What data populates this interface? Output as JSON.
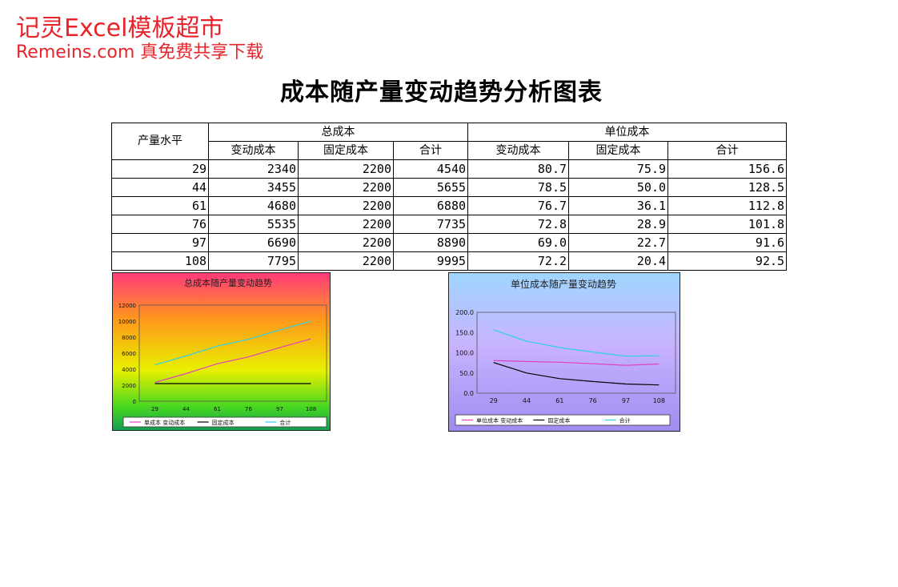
{
  "watermark": {
    "line1": "记灵Excel模板超市",
    "line2": "Remeins.com 真免费共享下载"
  },
  "title": "成本随产量变动趋势分析图表",
  "table": {
    "col_output": "产量水平",
    "group_total": "总成本",
    "group_unit": "单位成本",
    "sub_headers": [
      "变动成本",
      "固定成本",
      "合计",
      "变动成本",
      "固定成本",
      "合计"
    ],
    "rows": [
      [
        "29",
        "2340",
        "2200",
        "4540",
        "80.7",
        "75.9",
        "156.6"
      ],
      [
        "44",
        "3455",
        "2200",
        "5655",
        "78.5",
        "50.0",
        "128.5"
      ],
      [
        "61",
        "4680",
        "2200",
        "6880",
        "76.7",
        "36.1",
        "112.8"
      ],
      [
        "76",
        "5535",
        "2200",
        "7735",
        "72.8",
        "28.9",
        "101.8"
      ],
      [
        "97",
        "6690",
        "2200",
        "8890",
        "69.0",
        "22.7",
        "91.6"
      ],
      [
        "108",
        "7795",
        "2200",
        "9995",
        "72.2",
        "20.4",
        "92.5"
      ]
    ]
  },
  "chart_data": [
    {
      "type": "line",
      "title": "总成本随产量变动趋势",
      "categories": [
        "29",
        "44",
        "61",
        "76",
        "97",
        "108"
      ],
      "ylim": [
        0,
        12000
      ],
      "yticks": [
        "0",
        "2000",
        "4000",
        "6000",
        "8000",
        "10000",
        "12000"
      ],
      "series": [
        {
          "name": "单成本 变动成本",
          "color": "#e040c0",
          "values": [
            2340,
            3455,
            4680,
            5535,
            6690,
            7795
          ]
        },
        {
          "name": "固定成本",
          "color": "#000000",
          "values": [
            2200,
            2200,
            2200,
            2200,
            2200,
            2200
          ]
        },
        {
          "name": "合计",
          "color": "#30d0e8",
          "values": [
            4540,
            5655,
            6880,
            7735,
            8890,
            9995
          ]
        }
      ],
      "legend": "bottom",
      "grid": false
    },
    {
      "type": "line",
      "title": "单位成本随产量变动趋势",
      "categories": [
        "29",
        "44",
        "61",
        "76",
        "97",
        "108"
      ],
      "ylim": [
        0,
        200
      ],
      "yticks": [
        "0.0",
        "50.0",
        "100.0",
        "150.0",
        "200.0"
      ],
      "series": [
        {
          "name": "单位成本 变动成本",
          "color": "#e040c0",
          "values": [
            80.7,
            78.5,
            76.7,
            72.8,
            69.0,
            72.2
          ]
        },
        {
          "name": "固定成本",
          "color": "#000000",
          "values": [
            75.9,
            50.0,
            36.1,
            28.9,
            22.7,
            20.4
          ]
        },
        {
          "name": "合计",
          "color": "#30d0e8",
          "values": [
            156.6,
            128.5,
            112.8,
            101.8,
            91.6,
            92.5
          ]
        }
      ],
      "legend": "bottom",
      "grid": false
    }
  ]
}
